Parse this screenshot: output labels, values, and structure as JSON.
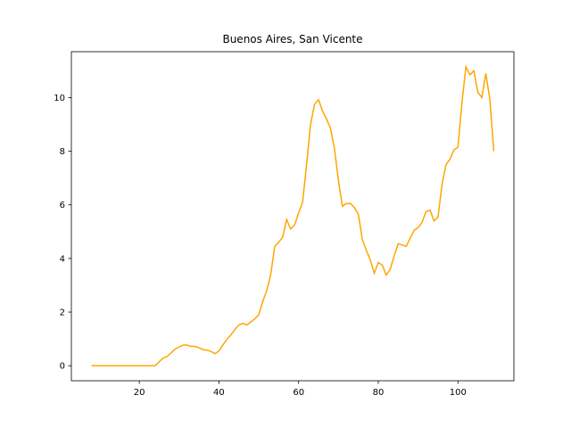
{
  "chart_data": {
    "type": "line",
    "title": "Buenos Aires, San Vicente",
    "x": [
      8,
      9,
      10,
      11,
      12,
      13,
      14,
      15,
      16,
      17,
      18,
      19,
      20,
      21,
      22,
      23,
      24,
      25,
      26,
      27,
      28,
      29,
      30,
      31,
      32,
      33,
      34,
      35,
      36,
      37,
      38,
      39,
      40,
      41,
      42,
      43,
      44,
      45,
      46,
      47,
      48,
      49,
      50,
      51,
      52,
      53,
      54,
      55,
      56,
      57,
      58,
      59,
      60,
      61,
      62,
      63,
      64,
      65,
      66,
      67,
      68,
      69,
      70,
      71,
      72,
      73,
      74,
      75,
      76,
      77,
      78,
      79,
      80,
      81,
      82,
      83,
      84,
      85,
      86,
      87,
      88,
      89,
      90,
      91,
      92,
      93,
      94,
      95,
      96,
      97,
      98,
      99,
      100,
      101,
      102,
      103,
      104,
      105,
      106,
      107,
      108,
      109
    ],
    "series": [
      {
        "color": "#ffa500",
        "values": [
          0,
          0,
          0,
          0,
          0,
          0,
          0,
          0,
          0,
          0,
          0,
          0,
          0,
          0,
          0,
          0,
          0,
          0.15,
          0.28,
          0.35,
          0.48,
          0.62,
          0.7,
          0.77,
          0.77,
          0.72,
          0.72,
          0.67,
          0.6,
          0.58,
          0.53,
          0.45,
          0.55,
          0.78,
          0.98,
          1.15,
          1.35,
          1.52,
          1.58,
          1.52,
          1.63,
          1.75,
          1.9,
          2.4,
          2.8,
          3.4,
          4.45,
          4.6,
          4.8,
          5.45,
          5.1,
          5.25,
          5.7,
          6.1,
          7.5,
          9.0,
          9.75,
          9.92,
          9.5,
          9.2,
          8.85,
          8.1,
          6.9,
          5.95,
          6.05,
          6.05,
          5.9,
          5.65,
          4.7,
          4.3,
          3.95,
          3.45,
          3.85,
          3.75,
          3.38,
          3.6,
          4.1,
          4.55,
          4.5,
          4.45,
          4.75,
          5.05,
          5.15,
          5.35,
          5.75,
          5.8,
          5.4,
          5.55,
          6.75,
          7.5,
          7.7,
          8.05,
          8.15,
          9.8,
          11.15,
          10.85,
          11.0,
          10.2,
          10.0,
          10.9,
          9.95,
          8.0
        ]
      }
    ],
    "xlim": [
      2.95,
      114.05
    ],
    "ylim": [
      -0.56,
      11.71
    ],
    "xticks": [
      20,
      40,
      60,
      80,
      100
    ],
    "yticks": [
      0,
      2,
      4,
      6,
      8,
      10
    ]
  }
}
